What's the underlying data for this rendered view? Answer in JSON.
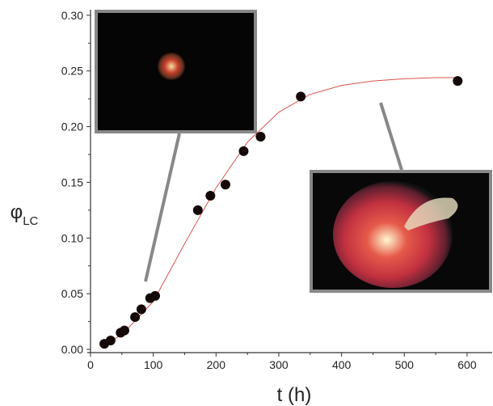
{
  "chart_data": {
    "type": "scatter",
    "x_label": "t (h)",
    "y_label": {
      "symbol": "φ",
      "subscript": "LC"
    },
    "xlim": [
      0,
      640
    ],
    "ylim": [
      0,
      0.305
    ],
    "xticks": [
      0,
      100,
      200,
      300,
      400,
      500,
      600
    ],
    "yticks": [
      {
        "value": 0,
        "label": "0.00"
      },
      {
        "value": 0.05,
        "label": "0.05"
      },
      {
        "value": 0.1,
        "label": "0.10"
      },
      {
        "value": 0.15,
        "label": "0.15"
      },
      {
        "value": 0.2,
        "label": "0.20"
      },
      {
        "value": 0.25,
        "label": "0.25"
      },
      {
        "value": 0.3,
        "label": "0.30"
      }
    ],
    "points": {
      "color": "#140808",
      "x": [
        22,
        32,
        48,
        54,
        71,
        81,
        95,
        103,
        171,
        191,
        215,
        244,
        271,
        335,
        585
      ],
      "y": [
        0.005,
        0.008,
        0.015,
        0.017,
        0.029,
        0.036,
        0.046,
        0.048,
        0.125,
        0.138,
        0.148,
        0.178,
        0.191,
        0.227,
        0.241
      ]
    },
    "fit": {
      "color": "#d9534f",
      "x": [
        20,
        50,
        100,
        150,
        200,
        250,
        300,
        350,
        400,
        450,
        500,
        550,
        585
      ],
      "y": [
        0.004,
        0.013,
        0.043,
        0.095,
        0.145,
        0.186,
        0.213,
        0.229,
        0.237,
        0.241,
        0.243,
        0.244,
        0.244
      ]
    }
  }
}
